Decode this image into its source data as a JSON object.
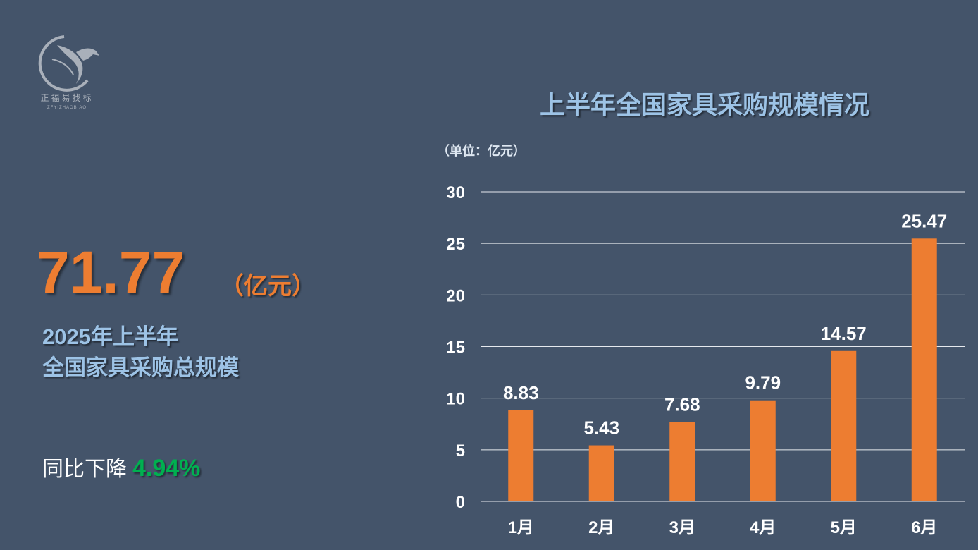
{
  "logo": {
    "name_cn": "正福易找标",
    "name_en": "ZFYIZHAOBIAO"
  },
  "summary": {
    "total": "71.77",
    "unit": "（亿元）",
    "line1": "2025年上半年",
    "line2": "全国家具采购总规模",
    "yoy_label": "同比下降",
    "yoy_value": "4.94%"
  },
  "colors": {
    "background": "#44546a",
    "bar": "#ed7d31",
    "title": "#9dc3e6",
    "decline": "#00b050"
  },
  "chart_data": {
    "type": "bar",
    "title": "上半年全国家具采购规模情况",
    "unit_label": "（单位：亿元）",
    "categories": [
      "1月",
      "2月",
      "3月",
      "4月",
      "5月",
      "6月"
    ],
    "values": [
      8.83,
      5.43,
      7.68,
      9.79,
      14.57,
      25.47
    ],
    "value_labels": [
      "8.83",
      "5.43",
      "7.68",
      "9.79",
      "14.57",
      "25.47"
    ],
    "ylim": [
      0,
      30
    ],
    "yticks": [
      "0",
      "5",
      "10",
      "15",
      "20",
      "25",
      "30"
    ],
    "grid": true,
    "legend": "none"
  }
}
